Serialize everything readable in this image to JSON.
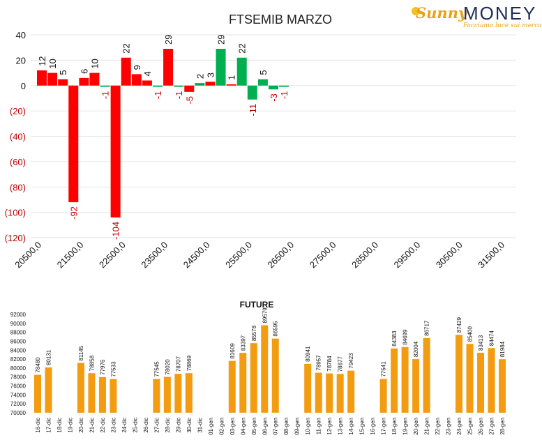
{
  "logo": {
    "brand_a": "Sunny",
    "brand_b": "MONEY",
    "tagline": "Facciamo luce sui mercati"
  },
  "colors": {
    "negative": "#ff0000",
    "positive": "#00b050",
    "future_bar": "#f39c12",
    "axis_neg_label": "#c00000",
    "grid": "#e6e6e6"
  },
  "chart_data": [
    {
      "type": "bar",
      "title": "FTSEMIB MARZO",
      "xlabel": "",
      "ylabel": "",
      "ylim": [
        -120,
        40
      ],
      "y_ticks": [
        {
          "value": 40,
          "label": "40"
        },
        {
          "value": 20,
          "label": "20"
        },
        {
          "value": 0,
          "label": "0"
        },
        {
          "value": -20,
          "label": "(20)"
        },
        {
          "value": -40,
          "label": "(40)"
        },
        {
          "value": -60,
          "label": "(60)"
        },
        {
          "value": -80,
          "label": "(80)"
        },
        {
          "value": -100,
          "label": "(100)"
        },
        {
          "value": -120,
          "label": "(120)"
        }
      ],
      "x_ticks": [
        "20500,0",
        "21500,0",
        "22500,0",
        "23500,0",
        "24500,0",
        "25500,0",
        "26500,0",
        "27500,0",
        "28500,0",
        "29500,0",
        "30500,0",
        "31500,0"
      ],
      "x_range": [
        20500,
        31500
      ],
      "grid": true,
      "bars": [
        {
          "x": 20500,
          "value": 12,
          "color": "red"
        },
        {
          "x": 20750,
          "value": 10,
          "color": "red"
        },
        {
          "x": 21000,
          "value": 5,
          "color": "red"
        },
        {
          "x": 21250,
          "value": -92,
          "color": "red"
        },
        {
          "x": 21500,
          "value": 6,
          "color": "red"
        },
        {
          "x": 21750,
          "value": 10,
          "color": "red"
        },
        {
          "x": 22000,
          "value": -1,
          "color": "green"
        },
        {
          "x": 22250,
          "value": -104,
          "color": "red"
        },
        {
          "x": 22500,
          "value": 22,
          "color": "red"
        },
        {
          "x": 22750,
          "value": 9,
          "color": "red"
        },
        {
          "x": 23000,
          "value": 4,
          "color": "red"
        },
        {
          "x": 23250,
          "value": -1,
          "color": "green"
        },
        {
          "x": 23500,
          "value": 29,
          "color": "red"
        },
        {
          "x": 23750,
          "value": -1,
          "color": "green"
        },
        {
          "x": 24000,
          "value": -5,
          "color": "red"
        },
        {
          "x": 24250,
          "value": 2,
          "color": "green"
        },
        {
          "x": 24500,
          "value": 3,
          "color": "red"
        },
        {
          "x": 24750,
          "value": 29,
          "color": "green"
        },
        {
          "x": 25000,
          "value": 1,
          "color": "red"
        },
        {
          "x": 25250,
          "value": 22,
          "color": "green"
        },
        {
          "x": 25500,
          "value": -11,
          "color": "green"
        },
        {
          "x": 25750,
          "value": 5,
          "color": "green"
        },
        {
          "x": 26000,
          "value": -3,
          "color": "green"
        },
        {
          "x": 26250,
          "value": -1,
          "color": "green"
        }
      ]
    },
    {
      "type": "bar",
      "title": "FUTURE",
      "xlabel": "",
      "ylabel": "",
      "ylim": [
        70000,
        92000
      ],
      "y_ticks": [
        "70000",
        "72000",
        "74000",
        "76000",
        "78000",
        "80000",
        "82000",
        "84000",
        "86000",
        "88000",
        "90000",
        "92000"
      ],
      "categories": [
        "16-dic",
        "17-dic",
        "18-dic",
        "19-dic",
        "20-dic",
        "21-dic",
        "22-dic",
        "23-dic",
        "24-dic",
        "25-dic",
        "26-dic",
        "27-dic",
        "28-dic",
        "29-dic",
        "30-dic",
        "31-dic",
        "01-gen",
        "02-gen",
        "03-gen",
        "04-gen",
        "05-gen",
        "06-gen",
        "07-gen",
        "08-gen",
        "09-gen",
        "10-gen",
        "11-gen",
        "12-gen",
        "13-gen",
        "14-gen",
        "15-gen",
        "16-gen",
        "17-gen",
        "18-gen",
        "19-gen",
        "20-gen",
        "21-gen",
        "22-gen",
        "23-gen",
        "24-gen",
        "25-gen",
        "26-gen",
        "27-gen",
        "28-gen"
      ],
      "values": [
        78480,
        80131,
        null,
        null,
        81145,
        78858,
        77976,
        77533,
        null,
        null,
        null,
        77545,
        78020,
        78707,
        78869,
        null,
        null,
        null,
        81609,
        83397,
        85578,
        89579,
        86595,
        null,
        null,
        80941,
        78957,
        78784,
        78677,
        79423,
        null,
        null,
        77541,
        84383,
        84699,
        82004,
        86717,
        null,
        null,
        87429,
        85400,
        83413,
        84474,
        81984
      ],
      "data_labels": [
        "78480",
        "80131",
        "",
        "",
        "81145",
        "78858",
        "77976",
        "77533",
        "",
        "",
        "",
        "77545",
        "78020",
        "78707",
        "78869",
        "",
        "",
        "",
        "81609",
        "83397",
        "85578",
        "89579",
        "86595",
        "",
        "",
        "80941",
        "78957",
        "78784",
        "78677",
        "79423",
        "",
        "",
        "77541",
        "84383",
        "84699",
        "82004",
        "86717",
        "",
        "",
        "87429",
        "85400",
        "83413",
        "84474",
        "81984"
      ],
      "grid": false
    }
  ]
}
